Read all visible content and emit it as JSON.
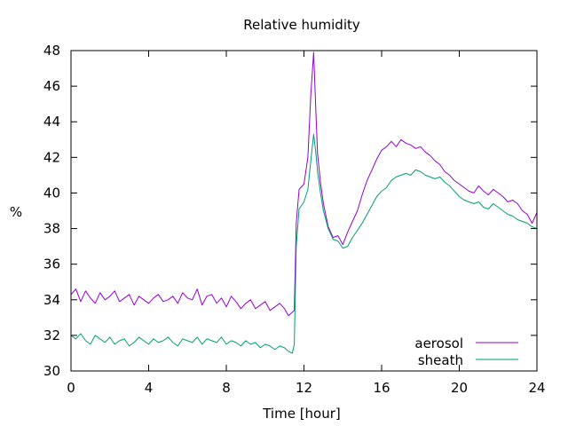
{
  "chart_data": {
    "type": "line",
    "title": "Relative humidity",
    "xlabel": "Time [hour]",
    "ylabel": "%",
    "xlim": [
      0,
      24
    ],
    "ylim": [
      30,
      48
    ],
    "xticks": [
      0,
      4,
      8,
      12,
      16,
      20,
      24
    ],
    "yticks": [
      30,
      32,
      34,
      36,
      38,
      40,
      42,
      44,
      46,
      48
    ],
    "grid": false,
    "legend_position": "bottom-right",
    "series": [
      {
        "name": "aerosol",
        "color": "#9400d3",
        "x": [
          0.0,
          0.25,
          0.5,
          0.75,
          1.0,
          1.25,
          1.5,
          1.75,
          2.0,
          2.25,
          2.5,
          2.75,
          3.0,
          3.25,
          3.5,
          3.75,
          4.0,
          4.25,
          4.5,
          4.75,
          5.0,
          5.25,
          5.5,
          5.75,
          6.0,
          6.25,
          6.5,
          6.75,
          7.0,
          7.25,
          7.5,
          7.75,
          8.0,
          8.25,
          8.5,
          8.75,
          9.0,
          9.25,
          9.5,
          9.75,
          10.0,
          10.25,
          10.5,
          10.75,
          11.0,
          11.2,
          11.4,
          11.5,
          11.6,
          11.75,
          12.0,
          12.2,
          12.35,
          12.5,
          12.6,
          12.7,
          12.85,
          13.0,
          13.25,
          13.5,
          13.75,
          14.0,
          14.25,
          14.5,
          14.75,
          15.0,
          15.25,
          15.5,
          15.75,
          16.0,
          16.25,
          16.5,
          16.75,
          17.0,
          17.25,
          17.5,
          17.75,
          18.0,
          18.25,
          18.5,
          18.75,
          19.0,
          19.25,
          19.5,
          19.75,
          20.0,
          20.25,
          20.5,
          20.75,
          21.0,
          21.25,
          21.5,
          21.75,
          22.0,
          22.25,
          22.5,
          22.75,
          23.0,
          23.25,
          23.5,
          23.75,
          24.0
        ],
        "y": [
          34.3,
          34.6,
          33.9,
          34.5,
          34.1,
          33.8,
          34.4,
          34.0,
          34.2,
          34.5,
          33.9,
          34.1,
          34.3,
          33.7,
          34.2,
          34.0,
          33.8,
          34.1,
          34.3,
          33.9,
          34.0,
          34.2,
          33.8,
          34.4,
          34.1,
          34.0,
          34.6,
          33.7,
          34.2,
          34.3,
          33.8,
          34.1,
          33.6,
          34.2,
          33.9,
          33.5,
          33.8,
          34.0,
          33.5,
          33.7,
          33.9,
          33.4,
          33.6,
          33.8,
          33.5,
          33.1,
          33.3,
          33.4,
          38.3,
          40.2,
          40.5,
          42.0,
          45.5,
          47.9,
          45.0,
          42.2,
          40.6,
          39.4,
          38.1,
          37.5,
          37.6,
          37.1,
          37.8,
          38.4,
          39.0,
          39.9,
          40.7,
          41.3,
          41.9,
          42.4,
          42.6,
          42.9,
          42.6,
          43.0,
          42.8,
          42.7,
          42.5,
          42.6,
          42.3,
          42.1,
          41.8,
          41.6,
          41.2,
          41.0,
          40.7,
          40.5,
          40.3,
          40.1,
          40.0,
          40.4,
          40.1,
          39.9,
          40.2,
          40.0,
          39.8,
          39.5,
          39.6,
          39.4,
          39.0,
          38.8,
          38.3,
          38.9
        ]
      },
      {
        "name": "sheath",
        "color": "#009e73",
        "x": [
          0.0,
          0.25,
          0.5,
          0.75,
          1.0,
          1.25,
          1.5,
          1.75,
          2.0,
          2.25,
          2.5,
          2.75,
          3.0,
          3.25,
          3.5,
          3.75,
          4.0,
          4.25,
          4.5,
          4.75,
          5.0,
          5.25,
          5.5,
          5.75,
          6.0,
          6.25,
          6.5,
          6.75,
          7.0,
          7.25,
          7.5,
          7.75,
          8.0,
          8.25,
          8.5,
          8.75,
          9.0,
          9.25,
          9.5,
          9.75,
          10.0,
          10.25,
          10.5,
          10.75,
          11.0,
          11.2,
          11.4,
          11.5,
          11.6,
          11.75,
          12.0,
          12.2,
          12.35,
          12.5,
          12.6,
          12.7,
          12.85,
          13.0,
          13.25,
          13.5,
          13.75,
          14.0,
          14.25,
          14.5,
          14.75,
          15.0,
          15.25,
          15.5,
          15.75,
          16.0,
          16.25,
          16.5,
          16.75,
          17.0,
          17.25,
          17.5,
          17.75,
          18.0,
          18.25,
          18.5,
          18.75,
          19.0,
          19.25,
          19.5,
          19.75,
          20.0,
          20.25,
          20.5,
          20.75,
          21.0,
          21.25,
          21.5,
          21.75,
          22.0,
          22.25,
          22.5,
          22.75,
          23.0,
          23.25,
          23.5,
          23.75,
          24.0
        ],
        "y": [
          32.0,
          31.8,
          32.1,
          31.7,
          31.5,
          32.0,
          31.8,
          31.6,
          31.9,
          31.5,
          31.7,
          31.8,
          31.4,
          31.6,
          31.9,
          31.7,
          31.5,
          31.8,
          31.6,
          31.7,
          31.9,
          31.6,
          31.4,
          31.8,
          31.7,
          31.6,
          31.9,
          31.5,
          31.8,
          31.7,
          31.6,
          31.9,
          31.5,
          31.7,
          31.6,
          31.4,
          31.7,
          31.5,
          31.6,
          31.3,
          31.5,
          31.4,
          31.2,
          31.4,
          31.3,
          31.1,
          31.0,
          31.5,
          37.0,
          39.1,
          39.5,
          40.2,
          41.8,
          43.3,
          42.4,
          41.2,
          40.0,
          39.0,
          38.0,
          37.4,
          37.3,
          36.9,
          37.0,
          37.5,
          37.9,
          38.3,
          38.8,
          39.3,
          39.8,
          40.1,
          40.3,
          40.7,
          40.9,
          41.0,
          41.1,
          41.0,
          41.3,
          41.2,
          41.0,
          40.9,
          40.8,
          40.9,
          40.6,
          40.4,
          40.1,
          39.8,
          39.6,
          39.5,
          39.4,
          39.5,
          39.2,
          39.1,
          39.4,
          39.2,
          39.0,
          38.8,
          38.7,
          38.5,
          38.4,
          38.3,
          38.1,
          38.0
        ]
      }
    ]
  }
}
